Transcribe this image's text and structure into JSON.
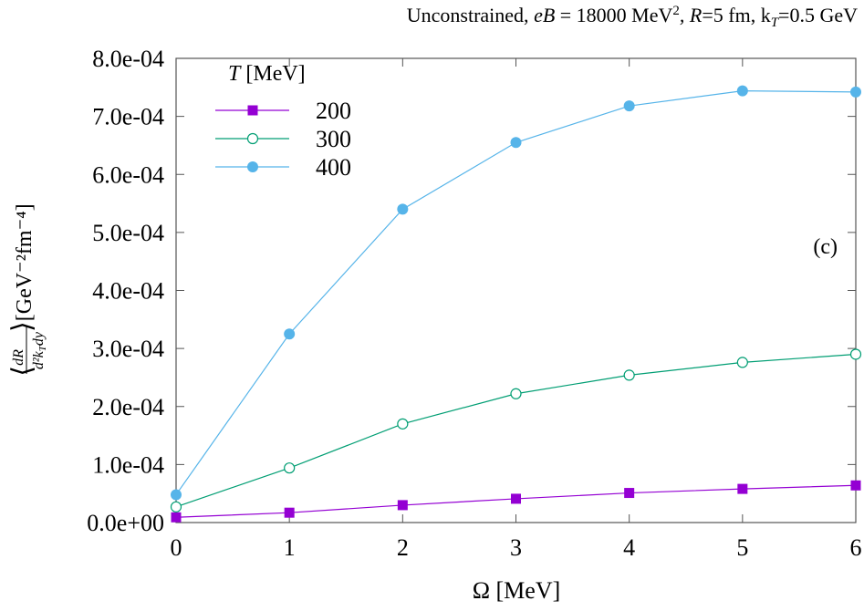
{
  "chart_data": {
    "type": "line",
    "title": "Unconstrained, eB = 18000 MeV², R=5 fm, k_T=0.5 GeV",
    "title_parts": {
      "pre": "Unconstrained, ",
      "eB": "eB",
      "eq1": " = 18000 MeV",
      "sup": "2",
      "r": ", R",
      "req": "=5 fm, k",
      "sub": "T",
      "kt": "=0.5 GeV"
    },
    "xlabel": "Ω [MeV]",
    "ylabel": "⟨dR/(d²k_T dy)⟩ [GeV⁻²fm⁻⁴]",
    "ylabel_parts": {
      "num": "dR",
      "den": "d²k",
      "den_sub": "T",
      "den_end": "dy",
      "unit": "[GeV⁻²fm⁻⁴]"
    },
    "annotation": "(c)",
    "legend_title": "T [MeV]",
    "legend_position": "top-left",
    "xlim": [
      0,
      6
    ],
    "ylim": [
      0,
      0.0008
    ],
    "x_ticks": [
      "0",
      "1",
      "2",
      "3",
      "4",
      "5",
      "6"
    ],
    "y_ticks": [
      "0.0e+00",
      "1.0e-04",
      "2.0e-04",
      "3.0e-04",
      "4.0e-04",
      "5.0e-04",
      "6.0e-04",
      "7.0e-04",
      "8.0e-04"
    ],
    "x": [
      0,
      1,
      2,
      3,
      4,
      5,
      6
    ],
    "series": [
      {
        "name": "200",
        "color": "#9400d3",
        "marker": "filled-square",
        "values": [
          9e-06,
          1.7e-05,
          3e-05,
          4.1e-05,
          5.1e-05,
          5.8e-05,
          6.4e-05
        ]
      },
      {
        "name": "300",
        "color": "#009e73",
        "marker": "open-circle",
        "values": [
          2.7e-05,
          9.4e-05,
          0.00017,
          0.000222,
          0.000254,
          0.000276,
          0.00029
        ]
      },
      {
        "name": "400",
        "color": "#56b4e9",
        "marker": "filled-circle",
        "values": [
          4.8e-05,
          0.000325,
          0.00054,
          0.000655,
          0.000718,
          0.000744,
          0.000742
        ]
      }
    ],
    "grid": false
  }
}
